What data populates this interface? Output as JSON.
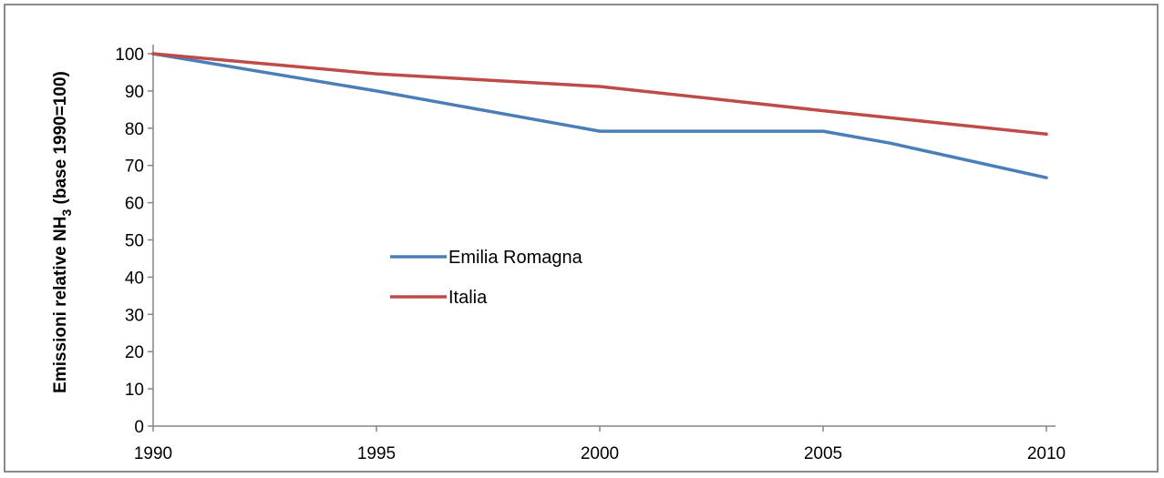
{
  "chart_data": {
    "type": "line",
    "title": "",
    "xlabel": "",
    "ylabel": {
      "prefix": "Emissioni relative NH",
      "subscript": "3",
      "suffix": " (base 1990=100)"
    },
    "x": [
      1990,
      1995,
      2000,
      2005,
      2010
    ],
    "xlim": [
      1990,
      2010
    ],
    "ylim": [
      0,
      100
    ],
    "yticks": [
      0,
      10,
      20,
      30,
      40,
      50,
      60,
      70,
      80,
      90,
      100
    ],
    "xticks": [
      1990,
      1995,
      2000,
      2005,
      2010
    ],
    "grid": false,
    "legend_position": "center-left",
    "series": [
      {
        "name": "Emilia Romagna",
        "color": "#4a7ebb",
        "points": [
          [
            1990,
            100
          ],
          [
            1995,
            90
          ],
          [
            2000,
            79.2
          ],
          [
            2005,
            79.2
          ],
          [
            2006.5,
            76
          ],
          [
            2010,
            66.7
          ]
        ]
      },
      {
        "name": "Italia",
        "color": "#be4b48",
        "points": [
          [
            1990,
            100
          ],
          [
            1995,
            94.6
          ],
          [
            2000,
            91.2
          ],
          [
            2005,
            84.7
          ],
          [
            2010,
            78.4
          ]
        ]
      }
    ]
  }
}
